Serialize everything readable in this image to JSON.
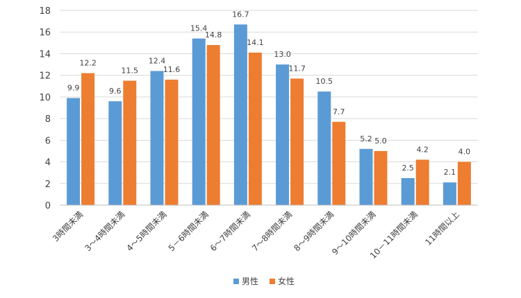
{
  "chart_data": {
    "type": "bar",
    "title": "",
    "xlabel": "",
    "ylabel": "",
    "ylim": [
      0,
      18
    ],
    "yticks": [
      0,
      2,
      4,
      6,
      8,
      10,
      12,
      14,
      16,
      18
    ],
    "grid": true,
    "legend_position": "bottom",
    "categories": [
      "3時間未満",
      "3～4時間未満",
      "4～5時間未満",
      "5－6時間未満",
      "6～7時間未満",
      "7～8時間未満",
      "8～9時間未満",
      "9～10時間未満",
      "10－11時間未満",
      "11時間以上"
    ],
    "series": [
      {
        "name": "男性",
        "color": "#5b9bd5",
        "values": [
          9.9,
          9.6,
          12.4,
          15.4,
          16.7,
          13.0,
          10.5,
          5.2,
          2.5,
          2.1
        ],
        "labels": [
          "9.9",
          "9.6",
          "12.4",
          "15.4",
          "16.7",
          "13.0",
          "10.5",
          "5.2",
          "2.5",
          "2.1"
        ]
      },
      {
        "name": "女性",
        "color": "#ed7d31",
        "values": [
          12.2,
          11.5,
          11.6,
          14.8,
          14.1,
          11.7,
          7.7,
          5.0,
          4.2,
          4.0
        ],
        "labels": [
          "12.2",
          "11.5",
          "11.6",
          "14.8",
          "14.1",
          "11.7",
          "7.7",
          "5.0",
          "4.2",
          "4.0"
        ]
      }
    ]
  }
}
